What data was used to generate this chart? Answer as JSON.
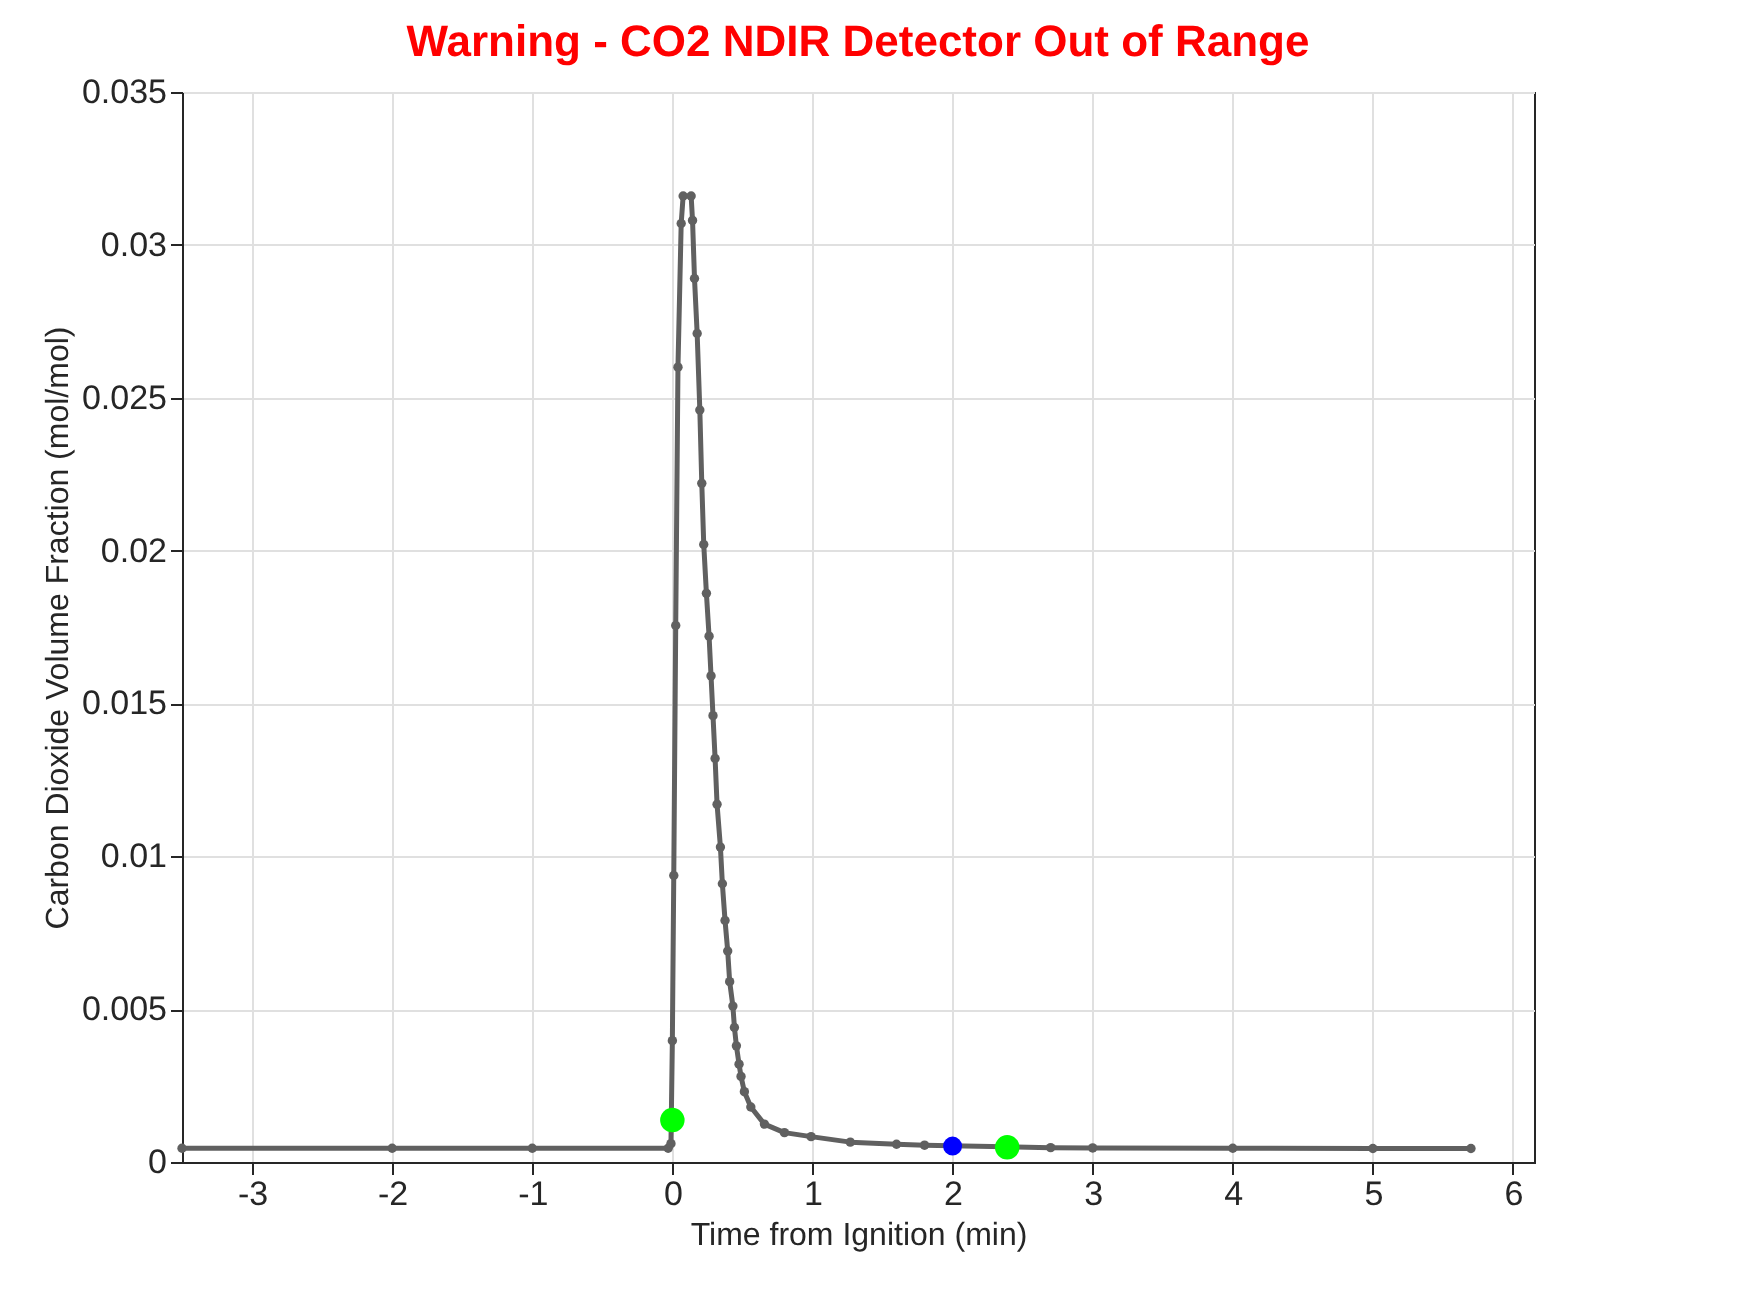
{
  "chart_data": {
    "type": "line",
    "title": "Warning - CO2 NDIR Detector Out of Range",
    "xlabel": "Time from Ignition (min)",
    "ylabel": "Carbon Dioxide Volume Fraction (mol/mol)",
    "series": [
      {
        "color": "#606060",
        "marker": "circle",
        "x": [
          -3.5,
          -2,
          -1,
          -0.03,
          -0.01,
          0.0,
          0.01,
          0.024,
          0.04,
          0.063,
          0.077,
          0.134,
          0.144,
          0.158,
          0.177,
          0.196,
          0.21,
          0.224,
          0.243,
          0.262,
          0.276,
          0.29,
          0.305,
          0.319,
          0.343,
          0.357,
          0.376,
          0.395,
          0.409,
          0.432,
          0.443,
          0.457,
          0.476,
          0.49,
          0.514,
          0.56,
          0.657,
          0.8,
          0.99,
          1.27,
          1.6,
          1.8,
          2.7,
          3,
          4,
          5,
          5.7
        ],
        "values": [
          0.00045,
          0.00045,
          0.00045,
          0.00045,
          0.0006,
          0.00397,
          0.00937,
          0.01755,
          0.026,
          0.0307,
          0.0316,
          0.0316,
          0.0308,
          0.0289,
          0.0271,
          0.0246,
          0.0222,
          0.0202,
          0.0186,
          0.0172,
          0.0159,
          0.0146,
          0.0132,
          0.0117,
          0.0103,
          0.0091,
          0.0079,
          0.0069,
          0.0059,
          0.0051,
          0.0044,
          0.0038,
          0.0032,
          0.0028,
          0.0023,
          0.0018,
          0.00124,
          0.00096,
          0.00083,
          0.00065,
          0.00058,
          0.00055,
          0.00047,
          0.00046,
          0.00045,
          0.00044,
          0.00044
        ]
      },
      {
        "type": "scatter",
        "color": "#00ff00",
        "marker": "circle",
        "x": [
          0,
          2.39
        ],
        "values": [
          0.00137,
          0.00048
        ]
      },
      {
        "type": "scatter",
        "color": "#0000ff",
        "marker": "circle",
        "x": [
          2
        ],
        "values": [
          0.00052
        ]
      }
    ],
    "xlim": [
      -3.5,
      6.15
    ],
    "xticks": [
      -3,
      -2,
      -1,
      0,
      1,
      2,
      3,
      4,
      5,
      6
    ],
    "ylim": [
      0,
      0.035
    ],
    "yticks": [
      0,
      0.005,
      0.01,
      0.015,
      0.02,
      0.025,
      0.03,
      0.035
    ],
    "grid": true
  }
}
